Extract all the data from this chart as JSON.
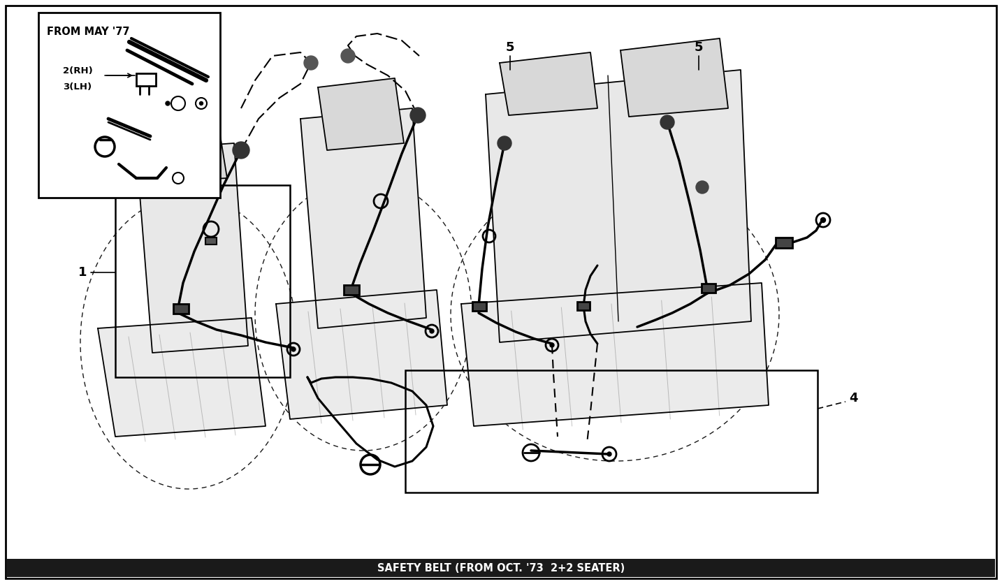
{
  "title": "SAFETY BELT (FROM OCT. '73  2+2 SEATER)",
  "background_color": "#ffffff",
  "line_color": "#000000",
  "fig_width": 14.34,
  "fig_height": 8.36,
  "inset_label": "FROM MAY '77",
  "inset_sub1": "2(RH)",
  "inset_sub2": "3(LH)",
  "label_1": "1",
  "label_4": "4",
  "label_5a": "5",
  "label_5b": "5"
}
